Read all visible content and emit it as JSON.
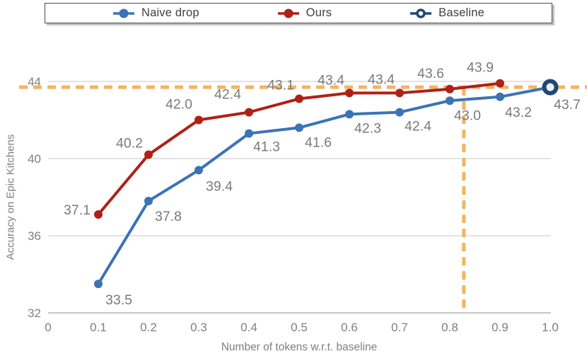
{
  "legend": {
    "items": [
      {
        "label": "Naive drop",
        "color": "#3B73B6",
        "marker": "filled"
      },
      {
        "label": "Ours",
        "color": "#B02016",
        "marker": "filled"
      },
      {
        "label": "Baseline",
        "color": "#1F4873",
        "marker": "open"
      }
    ]
  },
  "chart_data": {
    "type": "line",
    "title": "",
    "xlabel": "Number of tokens w.r.t. baseline",
    "ylabel": "Accuracy on Epic Kitchens",
    "xlim": [
      0,
      1.05
    ],
    "ylim": [
      32,
      45
    ],
    "grid": "horizontal",
    "legend_position": "top",
    "xtick_values": [
      0,
      0.1,
      0.2,
      0.3,
      0.4,
      0.5,
      0.6,
      0.7,
      0.8,
      0.9,
      1.0
    ],
    "xtick_labels": [
      "0",
      "0.1",
      "0.2",
      "0.3",
      "0.4",
      "0.5",
      "0.6",
      "0.7",
      "0.8",
      "0.9",
      "1.0"
    ],
    "ytick_values": [
      32,
      36,
      40,
      44
    ],
    "ytick_labels": [
      "32",
      "36",
      "40",
      "44"
    ],
    "series": [
      {
        "name": "Naive drop",
        "color": "#3B73B6",
        "marker": "circle",
        "x": [
          0.1,
          0.2,
          0.3,
          0.4,
          0.5,
          0.6,
          0.7,
          0.8,
          0.9,
          1.0
        ],
        "y": [
          33.5,
          37.8,
          39.4,
          41.3,
          41.6,
          42.3,
          42.4,
          43.0,
          43.2,
          43.7
        ],
        "labels": [
          "33.5",
          "37.8",
          "39.4",
          "41.3",
          "41.6",
          "42.3",
          "42.4",
          "43.0",
          "43.2",
          ""
        ]
      },
      {
        "name": "Ours",
        "color": "#B02016",
        "marker": "circle",
        "x": [
          0.1,
          0.2,
          0.3,
          0.4,
          0.5,
          0.6,
          0.7,
          0.8,
          0.9
        ],
        "y": [
          37.1,
          40.2,
          42.0,
          42.4,
          43.1,
          43.4,
          43.4,
          43.6,
          43.9
        ],
        "labels": [
          "37.1",
          "40.2",
          "42.0",
          "42.4",
          "43.1",
          "43.4",
          "43.4",
          "43.6",
          "43.9"
        ]
      },
      {
        "name": "Baseline",
        "color": "#1F4873",
        "marker": "open-circle",
        "x": [
          1.0
        ],
        "y": [
          43.7
        ],
        "labels": [
          "43.7"
        ]
      }
    ],
    "reference_lines": [
      {
        "orientation": "horizontal",
        "value": 43.7,
        "color": "#F3B461",
        "style": "dashed"
      },
      {
        "orientation": "vertical",
        "value": 0.828,
        "color": "#F3B461",
        "style": "dashed"
      }
    ]
  }
}
